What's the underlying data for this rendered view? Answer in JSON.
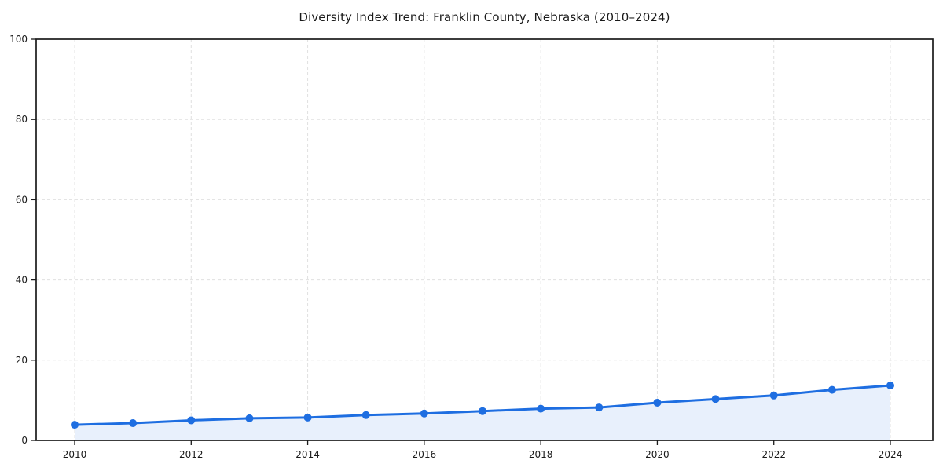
{
  "chart_data": {
    "type": "line",
    "title": "Diversity Index Trend: Franklin County, Nebraska (2010–2024)",
    "x": [
      2010,
      2011,
      2012,
      2013,
      2014,
      2015,
      2016,
      2017,
      2018,
      2019,
      2020,
      2021,
      2022,
      2023,
      2024
    ],
    "series": [
      {
        "name": "Diversity Index",
        "values": [
          3.9,
          4.3,
          5.0,
          5.5,
          5.7,
          6.3,
          6.7,
          7.3,
          7.9,
          8.2,
          9.4,
          10.3,
          11.2,
          12.6,
          13.7
        ]
      }
    ],
    "xlabel": "",
    "ylabel": "",
    "ylim": [
      0,
      100
    ],
    "yticks": [
      0,
      20,
      40,
      60,
      80,
      100
    ],
    "xticks": [
      2010,
      2012,
      2014,
      2016,
      2018,
      2020,
      2022,
      2024
    ],
    "legend": "none",
    "grid": {
      "visible": true,
      "style": "dashed",
      "color": "#e0e0e0"
    },
    "area_fill": true,
    "marker": "circle",
    "colors": {
      "line": "#1e6ee1",
      "fill": "#e8f0fc",
      "axis": "#1a1a1a",
      "text": "#1a1a1a",
      "background": "#ffffff"
    }
  }
}
